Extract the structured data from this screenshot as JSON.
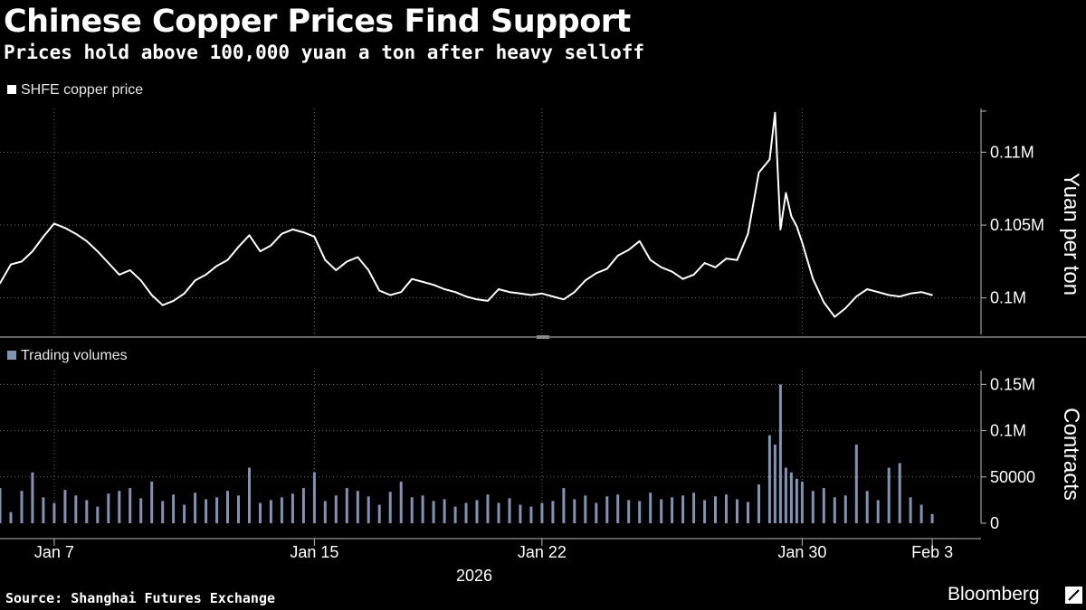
{
  "header": {
    "title": "Chinese Copper Prices Find Support",
    "subtitle": "Prices hold above 100,000 yuan a ton after heavy selloff"
  },
  "footer": {
    "source": "Source: Shanghai Futures Exchange",
    "brand": "Bloomberg"
  },
  "colors": {
    "background": "#000000",
    "price_line": "#ffffff",
    "volume_bars": "#8193b3",
    "grid": "#6a6a6a"
  },
  "chart_data": [
    {
      "type": "line",
      "legend": "SHFE copper price",
      "ylabel": "Yuan per ton",
      "ylim": [
        97500,
        113000
      ],
      "yticks": [
        100000,
        105000,
        110000
      ],
      "ytick_labels": [
        "0.1M",
        "0.105M",
        "0.11M"
      ],
      "grid": true,
      "x_time_range": [
        "2026-01-05 08:00",
        "2026-02-04 12:00"
      ],
      "series": [
        {
          "name": "SHFE copper price",
          "x": [
            "2026-01-05 08:00",
            "2026-01-05 16:00",
            "2026-01-06 00:00",
            "2026-01-06 08:00",
            "2026-01-06 16:00",
            "2026-01-07 00:00",
            "2026-01-07 08:00",
            "2026-01-07 16:00",
            "2026-01-08 00:00",
            "2026-01-08 08:00",
            "2026-01-08 16:00",
            "2026-01-09 00:00",
            "2026-01-09 08:00",
            "2026-01-09 16:00",
            "2026-01-10 00:00",
            "2026-01-10 08:00",
            "2026-01-10 16:00",
            "2026-01-11 00:00",
            "2026-01-11 08:00",
            "2026-01-11 16:00",
            "2026-01-12 00:00",
            "2026-01-12 08:00",
            "2026-01-12 16:00",
            "2026-01-13 00:00",
            "2026-01-13 08:00",
            "2026-01-13 16:00",
            "2026-01-14 00:00",
            "2026-01-14 08:00",
            "2026-01-14 16:00",
            "2026-01-15 00:00",
            "2026-01-15 08:00",
            "2026-01-15 16:00",
            "2026-01-16 00:00",
            "2026-01-16 08:00",
            "2026-01-16 16:00",
            "2026-01-17 00:00",
            "2026-01-17 08:00",
            "2026-01-17 16:00",
            "2026-01-18 00:00",
            "2026-01-18 08:00",
            "2026-01-18 16:00",
            "2026-01-19 00:00",
            "2026-01-19 08:00",
            "2026-01-19 16:00",
            "2026-01-20 00:00",
            "2026-01-20 08:00",
            "2026-01-20 16:00",
            "2026-01-21 00:00",
            "2026-01-21 08:00",
            "2026-01-21 16:00",
            "2026-01-22 00:00",
            "2026-01-22 08:00",
            "2026-01-22 16:00",
            "2026-01-23 00:00",
            "2026-01-23 08:00",
            "2026-01-23 16:00",
            "2026-01-24 00:00",
            "2026-01-24 08:00",
            "2026-01-24 16:00",
            "2026-01-25 00:00",
            "2026-01-25 08:00",
            "2026-01-25 16:00",
            "2026-01-26 00:00",
            "2026-01-26 08:00",
            "2026-01-26 16:00",
            "2026-01-27 00:00",
            "2026-01-27 08:00",
            "2026-01-27 16:00",
            "2026-01-28 00:00",
            "2026-01-28 08:00",
            "2026-01-28 16:00",
            "2026-01-29 00:00",
            "2026-01-29 04:00",
            "2026-01-29 08:00",
            "2026-01-29 12:00",
            "2026-01-29 16:00",
            "2026-01-29 20:00",
            "2026-01-30 00:00",
            "2026-01-30 08:00",
            "2026-01-30 16:00",
            "2026-01-31 00:00",
            "2026-01-31 08:00",
            "2026-01-31 16:00",
            "2026-02-01 00:00",
            "2026-02-01 08:00",
            "2026-02-01 16:00",
            "2026-02-02 00:00",
            "2026-02-02 08:00",
            "2026-02-02 16:00",
            "2026-02-03 00:00"
          ],
          "values": [
            101000,
            102300,
            102500,
            103200,
            104200,
            105100,
            104800,
            104400,
            103900,
            103200,
            102400,
            101600,
            101900,
            101200,
            100200,
            99500,
            99800,
            100300,
            101200,
            101600,
            102200,
            102600,
            103500,
            104300,
            103200,
            103600,
            104400,
            104700,
            104500,
            104200,
            102600,
            101900,
            102500,
            102800,
            101900,
            100500,
            100200,
            100400,
            101300,
            101100,
            100900,
            100600,
            100400,
            100100,
            99900,
            99800,
            100600,
            100400,
            100300,
            100200,
            100300,
            100100,
            99900,
            100400,
            101200,
            101700,
            102000,
            102900,
            103300,
            103900,
            102600,
            102100,
            101800,
            101300,
            101600,
            102400,
            102100,
            102700,
            102600,
            104400,
            108600,
            109500,
            112700,
            104700,
            107200,
            105600,
            104900,
            103800,
            101300,
            99700,
            98700,
            99300,
            100100,
            100600,
            100400,
            100200,
            100100,
            100300,
            100400,
            100200
          ]
        }
      ]
    },
    {
      "type": "bar",
      "legend": "Trading volumes",
      "ylabel": "Contracts",
      "ylim": [
        0,
        165000
      ],
      "yticks": [
        0,
        50000,
        100000,
        150000
      ],
      "ytick_labels": [
        "0",
        "50000",
        "0.1M",
        "0.15M"
      ],
      "grid": true,
      "x_time_range": [
        "2026-01-05 08:00",
        "2026-02-04 12:00"
      ],
      "x": [
        "2026-01-05 08:00",
        "2026-01-05 16:00",
        "2026-01-06 00:00",
        "2026-01-06 08:00",
        "2026-01-06 16:00",
        "2026-01-07 00:00",
        "2026-01-07 08:00",
        "2026-01-07 16:00",
        "2026-01-08 00:00",
        "2026-01-08 08:00",
        "2026-01-08 16:00",
        "2026-01-09 00:00",
        "2026-01-09 08:00",
        "2026-01-09 16:00",
        "2026-01-10 00:00",
        "2026-01-10 08:00",
        "2026-01-10 16:00",
        "2026-01-11 00:00",
        "2026-01-11 08:00",
        "2026-01-11 16:00",
        "2026-01-12 00:00",
        "2026-01-12 08:00",
        "2026-01-12 16:00",
        "2026-01-13 00:00",
        "2026-01-13 08:00",
        "2026-01-13 16:00",
        "2026-01-14 00:00",
        "2026-01-14 08:00",
        "2026-01-14 16:00",
        "2026-01-15 00:00",
        "2026-01-15 08:00",
        "2026-01-15 16:00",
        "2026-01-16 00:00",
        "2026-01-16 08:00",
        "2026-01-16 16:00",
        "2026-01-17 00:00",
        "2026-01-17 08:00",
        "2026-01-17 16:00",
        "2026-01-18 00:00",
        "2026-01-18 08:00",
        "2026-01-18 16:00",
        "2026-01-19 00:00",
        "2026-01-19 08:00",
        "2026-01-19 16:00",
        "2026-01-20 00:00",
        "2026-01-20 08:00",
        "2026-01-20 16:00",
        "2026-01-21 00:00",
        "2026-01-21 08:00",
        "2026-01-21 16:00",
        "2026-01-22 00:00",
        "2026-01-22 08:00",
        "2026-01-22 16:00",
        "2026-01-23 00:00",
        "2026-01-23 08:00",
        "2026-01-23 16:00",
        "2026-01-24 00:00",
        "2026-01-24 08:00",
        "2026-01-24 16:00",
        "2026-01-25 00:00",
        "2026-01-25 08:00",
        "2026-01-25 16:00",
        "2026-01-26 00:00",
        "2026-01-26 08:00",
        "2026-01-26 16:00",
        "2026-01-27 00:00",
        "2026-01-27 08:00",
        "2026-01-27 16:00",
        "2026-01-28 00:00",
        "2026-01-28 08:00",
        "2026-01-28 16:00",
        "2026-01-29 00:00",
        "2026-01-29 04:00",
        "2026-01-29 08:00",
        "2026-01-29 12:00",
        "2026-01-29 16:00",
        "2026-01-29 20:00",
        "2026-01-30 00:00",
        "2026-01-30 08:00",
        "2026-01-30 16:00",
        "2026-01-31 00:00",
        "2026-01-31 08:00",
        "2026-01-31 16:00",
        "2026-02-01 00:00",
        "2026-02-01 08:00",
        "2026-02-01 16:00",
        "2026-02-02 00:00",
        "2026-02-02 08:00",
        "2026-02-02 16:00",
        "2026-02-03 00:00"
      ],
      "values": [
        38000,
        12000,
        35000,
        55000,
        28000,
        22000,
        36000,
        30000,
        25000,
        18000,
        32000,
        35000,
        38000,
        27000,
        45000,
        24000,
        31000,
        20000,
        33000,
        26000,
        28000,
        35000,
        30000,
        60000,
        22000,
        25000,
        28000,
        32000,
        38000,
        55000,
        24000,
        30000,
        38000,
        35000,
        29000,
        20000,
        34000,
        45000,
        28000,
        30000,
        24000,
        26000,
        18000,
        22000,
        25000,
        31000,
        22000,
        27000,
        20000,
        18000,
        22000,
        24000,
        38000,
        26000,
        30000,
        22000,
        29000,
        31000,
        25000,
        24000,
        33000,
        26000,
        28000,
        30000,
        33000,
        25000,
        29000,
        31000,
        26000,
        23000,
        42000,
        95000,
        85000,
        150000,
        60000,
        55000,
        48000,
        45000,
        35000,
        38000,
        28000,
        30000,
        85000,
        35000,
        25000,
        60000,
        65000,
        28000,
        20000,
        10000
      ]
    }
  ],
  "x_axis": {
    "tick_labels": [
      "Jan 7",
      "Jan 15",
      "Jan 22",
      "Jan 30",
      "Feb 3"
    ],
    "tick_dates": [
      "2026-01-07 00:00",
      "2026-01-15 00:00",
      "2026-01-22 00:00",
      "2026-01-30 00:00",
      "2026-02-03 00:00"
    ],
    "year_label": "2026"
  }
}
